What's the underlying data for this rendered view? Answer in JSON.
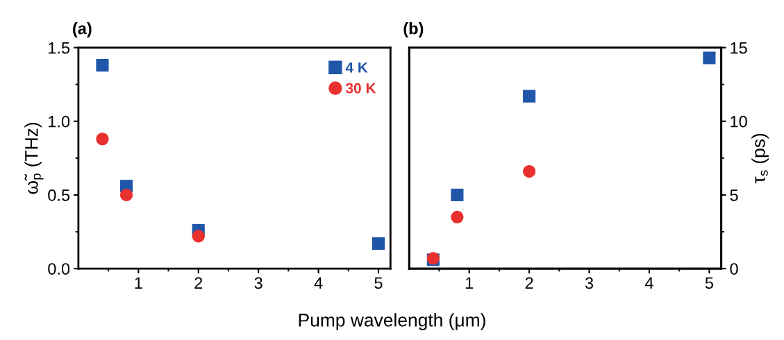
{
  "chart_data": [
    {
      "type": "scatter",
      "title": "(a)",
      "xlabel": "Pump wavelength (μm)",
      "ylabel": "ω̃$_{p}$ (THz)",
      "xlim": [
        0,
        5.2
      ],
      "xticks": [
        {
          "value": 0.5,
          "label": null
        },
        1,
        {
          "value": 1.5,
          "label": null
        },
        2,
        {
          "value": 2.5,
          "label": null
        },
        3,
        {
          "value": 3.5,
          "label": null
        },
        4,
        {
          "value": 4.5,
          "label": null
        },
        5
      ],
      "ylim": [
        0,
        1.5
      ],
      "yticks": [
        {
          "value": 0,
          "label": "0.0"
        },
        {
          "value": 0.25,
          "label": null
        },
        0.5,
        {
          "value": 0.75,
          "label": null
        },
        {
          "value": 1,
          "label": "1.0"
        },
        {
          "value": 1.25,
          "label": null
        },
        1.5
      ],
      "legend": "top right",
      "grid": false,
      "series": [
        {
          "name": "4 K",
          "color": "#1f56a8",
          "marker": "square",
          "x": [
            0.4,
            0.8,
            2,
            5
          ],
          "values": [
            1.38,
            0.56,
            0.26,
            0.17
          ]
        },
        {
          "name": "30 K",
          "color": "#e8302e",
          "marker": "circle",
          "x": [
            0.4,
            0.8,
            2
          ],
          "values": [
            0.88,
            0.5,
            0.22
          ]
        }
      ]
    },
    {
      "type": "scatter",
      "title": "(b)",
      "y2label": "τ$_{s}$ (ps)",
      "xlim": [
        0,
        5.2
      ],
      "xticks": [
        {
          "value": 0.5,
          "label": null
        },
        1,
        {
          "value": 1.5,
          "label": null
        },
        2,
        {
          "value": 2.5,
          "label": null
        },
        3,
        {
          "value": 3.5,
          "label": null
        },
        4,
        {
          "value": 4.5,
          "label": null
        },
        5
      ],
      "y2lim": [
        0,
        15
      ],
      "y2ticks": [
        0,
        {
          "value": 2.5,
          "label": null
        },
        5,
        {
          "value": 7.5,
          "label": null
        },
        10,
        {
          "value": 12.5,
          "label": null
        },
        15
      ],
      "grid": false,
      "series": [
        {
          "color": "#1f56a8",
          "marker": "square",
          "axis": "y2",
          "x": [
            0.4,
            0.8,
            2,
            5
          ],
          "values": [
            0.6,
            5.0,
            11.7,
            14.3
          ]
        },
        {
          "color": "#e8302e",
          "marker": "circle",
          "axis": "y2",
          "x": [
            0.4,
            0.8,
            2
          ],
          "values": [
            0.7,
            3.5,
            6.6
          ]
        }
      ]
    }
  ]
}
